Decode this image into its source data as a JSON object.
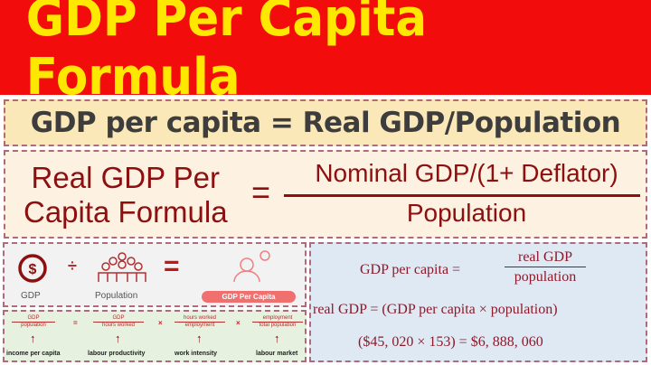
{
  "title": "GDP Per Capita Formula",
  "formula_basic": "GDP per capita = Real GDP/Population",
  "real_formula": {
    "lhs_line1": "Real GDP Per",
    "lhs_line2": "Capita Formula",
    "equals": "=",
    "numerator": "Nominal GDP/(1+ Deflator)",
    "denominator": "Population"
  },
  "icon_panel": {
    "gdp_label": "GDP",
    "population_label": "Population",
    "result_label": "GDP Per Capita",
    "divide": "÷",
    "equals": "="
  },
  "decomposition": {
    "fractions": [
      {
        "num": "GDP",
        "den": "population",
        "label": "income per capita"
      },
      {
        "num": "GDP",
        "den": "hours worked",
        "label": "labour productivity"
      },
      {
        "num": "hours worked",
        "den": "employment",
        "label": "work intensity"
      },
      {
        "num": "employment",
        "den": "total population",
        "label": "labour market"
      }
    ],
    "ops": [
      "=",
      "×",
      "×"
    ]
  },
  "example": {
    "line1_lhs": "GDP per capita  =",
    "line1_num": "real GDP",
    "line1_den": "population",
    "line2": "real GDP  = (GDP per capita × population)",
    "line3": "($45, 020 × 153) = $6, 888, 060"
  },
  "colors": {
    "header_bg": "#f20c0c",
    "title": "#ffe800",
    "formula_red": "#8c1010"
  }
}
